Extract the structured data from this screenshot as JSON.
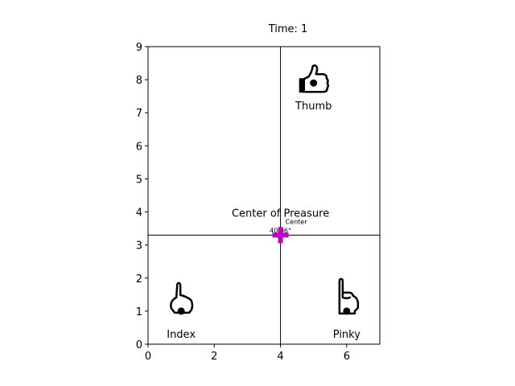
{
  "chart_data": {
    "type": "scatter",
    "title": "Time: 1",
    "xlabel": "",
    "ylabel": "",
    "xlim": [
      0,
      7
    ],
    "ylim": [
      0,
      9
    ],
    "xticks": [
      0,
      2,
      4,
      6
    ],
    "yticks": [
      0,
      1,
      2,
      3,
      4,
      5,
      6,
      7,
      8,
      9
    ],
    "grid": false,
    "sensors": [
      {
        "label": "Thumb",
        "x": 5,
        "y": 7.9,
        "icon": "thumbs-up-icon"
      },
      {
        "label": "Index",
        "x": 1,
        "y": 1,
        "icon": "pointing-finger-icon"
      },
      {
        "label": "Pinky",
        "x": 6,
        "y": 1,
        "icon": "raised-pinky-icon"
      }
    ],
    "center_of_pressure": {
      "label": "Center of Preasure",
      "x": 4,
      "y": 3.3,
      "marker_color": "#bf00bf",
      "annotation_center": "Center",
      "annotation_angle": "40.06°"
    },
    "crosshair": {
      "x": 4,
      "y": 3.3
    }
  }
}
